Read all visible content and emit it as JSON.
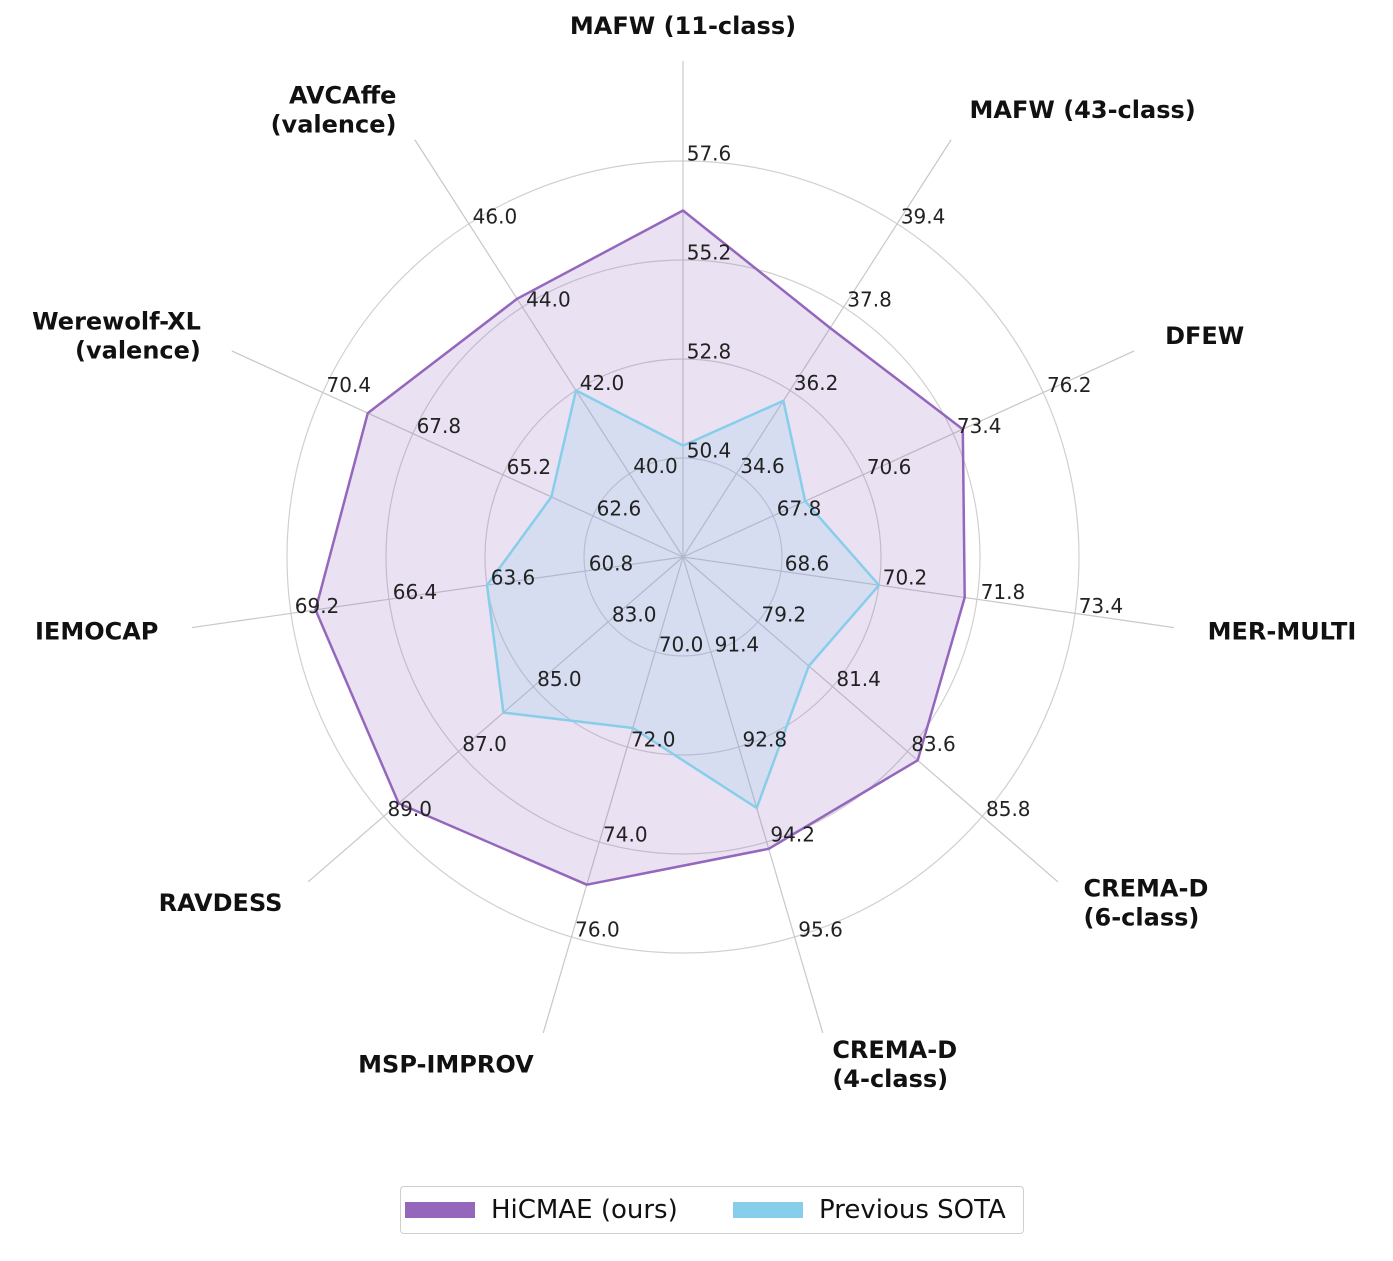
{
  "chart_data": {
    "type": "radar",
    "axes": [
      {
        "label": "MAFW (11-class)",
        "ticks": [
          "50.4",
          "52.8",
          "55.2",
          "57.6"
        ],
        "min": 48.0,
        "max": 57.6
      },
      {
        "label": "MAFW (43-class)",
        "ticks": [
          "34.6",
          "36.2",
          "37.8",
          "39.4"
        ],
        "min": 33.0,
        "max": 39.4
      },
      {
        "label": "DFEW",
        "ticks": [
          "67.8",
          "70.6",
          "73.4",
          "76.2"
        ],
        "min": 65.0,
        "max": 76.2
      },
      {
        "label": "MER-MULTI",
        "ticks": [
          "68.6",
          "70.2",
          "71.8",
          "73.4"
        ],
        "min": 67.0,
        "max": 73.4
      },
      {
        "label": "CREMA-D\n(6-class)",
        "ticks": [
          "79.2",
          "81.4",
          "83.6",
          "85.8"
        ],
        "min": 77.0,
        "max": 85.8
      },
      {
        "label": "CREMA-D\n(4-class)",
        "ticks": [
          "91.4",
          "92.8",
          "94.2",
          "95.6"
        ],
        "min": 90.0,
        "max": 95.6
      },
      {
        "label": "MSP-IMPROV",
        "ticks": [
          "70.0",
          "72.0",
          "74.0",
          "76.0"
        ],
        "min": 68.0,
        "max": 76.0
      },
      {
        "label": "RAVDESS",
        "ticks": [
          "83.0",
          "85.0",
          "87.0",
          "89.0"
        ],
        "min": 81.0,
        "max": 89.0
      },
      {
        "label": "IEMOCAP",
        "ticks": [
          "60.8",
          "63.6",
          "66.4",
          "69.2"
        ],
        "min": 58.0,
        "max": 69.2
      },
      {
        "label": "Werewolf-XL\n(valence)",
        "ticks": [
          "62.6",
          "65.2",
          "67.8",
          "70.4"
        ],
        "min": 60.0,
        "max": 70.4
      },
      {
        "label": "AVCAffe\n(valence)",
        "ticks": [
          "40.0",
          "42.0",
          "44.0",
          "46.0"
        ],
        "min": 38.0,
        "max": 46.0
      }
    ],
    "series": [
      {
        "name": "HiCMAE (ours)",
        "color": "#9467bd",
        "values": [
          56.4,
          37.4,
          73.7,
          71.6,
          83.9,
          94.3,
          74.9,
          88.6,
          68.5,
          69.1,
          44.2
        ]
      },
      {
        "name": "Previous SOTA",
        "color": "#87ceeb",
        "values": [
          50.7,
          36.0,
          68.8,
          70.2,
          80.7,
          93.7,
          71.6,
          85.8,
          63.6,
          63.8,
          42.0
        ]
      }
    ],
    "grid": true,
    "legend_position": "bottom-center"
  }
}
